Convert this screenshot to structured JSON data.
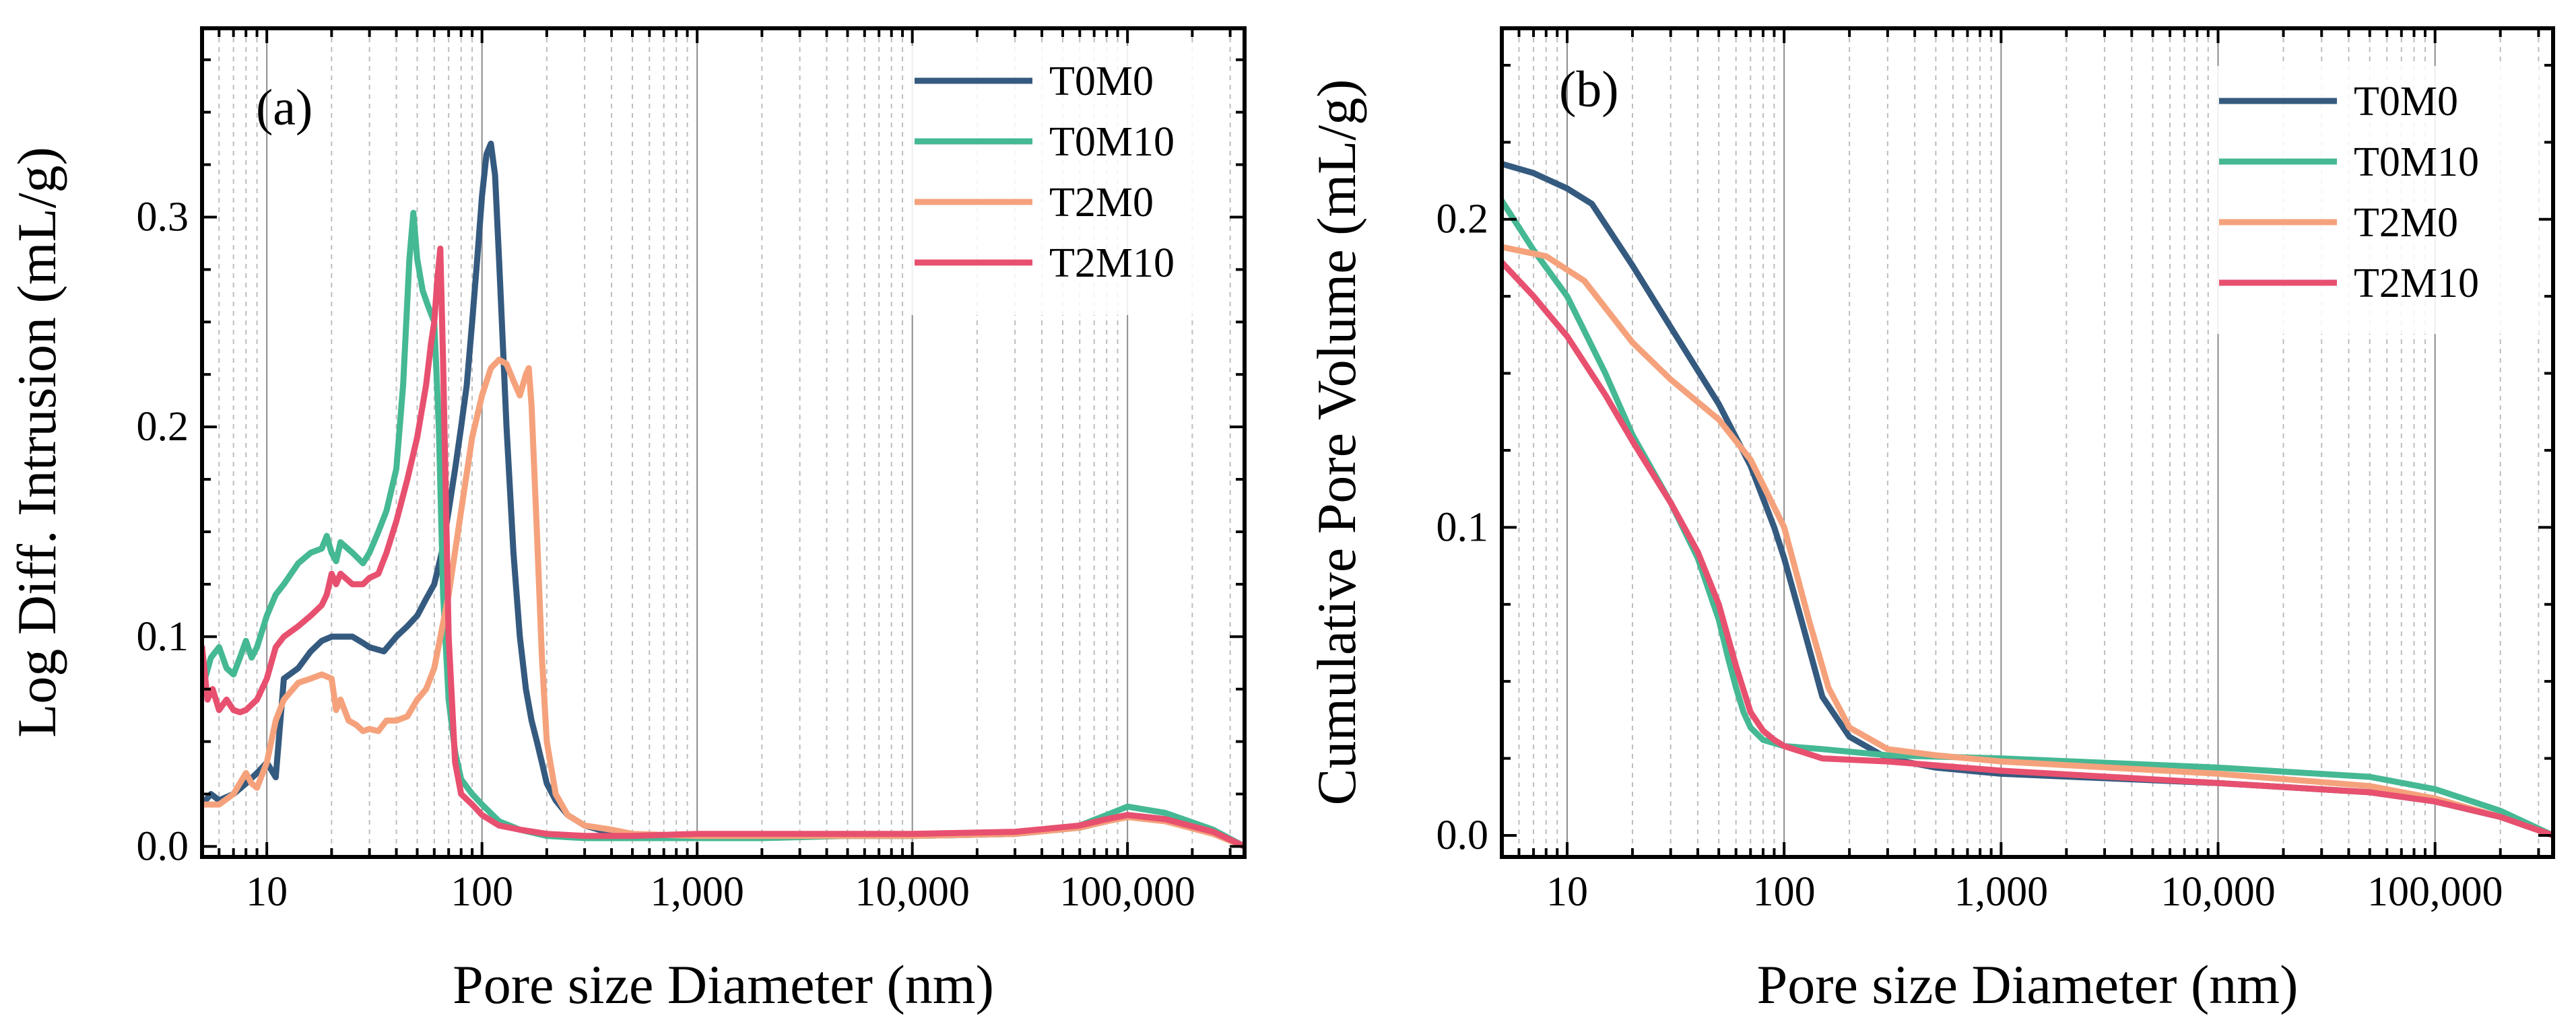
{
  "chart_data": [
    {
      "type": "line",
      "panel_label": "(a)",
      "xlabel": "Pore size Diameter (nm)",
      "ylabel": "Log Diff. Intrusion (mL/g)",
      "xscale": "log",
      "xlim": [
        5,
        350000
      ],
      "ylim": [
        -0.005,
        0.39
      ],
      "xticks": [
        10,
        100,
        1000,
        10000,
        100000
      ],
      "xtick_labels": [
        "10",
        "100",
        "1,000",
        "10,000",
        "100,000"
      ],
      "yticks": [
        0.0,
        0.1,
        0.2,
        0.3
      ],
      "ytick_labels": [
        "0.0",
        "0.1",
        "0.2",
        "0.3"
      ],
      "grid": "vertical, log minor",
      "legend_position": "top-right",
      "series": [
        {
          "name": "T0M0",
          "color": "#355a7f",
          "x": [
            5,
            5.5,
            6,
            7,
            8,
            9,
            10,
            11,
            12,
            14,
            16,
            18,
            20,
            22,
            25,
            28,
            30,
            35,
            40,
            45,
            50,
            55,
            60,
            65,
            70,
            75,
            80,
            85,
            90,
            95,
            100,
            105,
            110,
            115,
            120,
            125,
            130,
            140,
            150,
            160,
            170,
            180,
            190,
            200,
            220,
            250,
            300,
            350,
            400,
            500,
            700,
            1000,
            2000,
            5000,
            10000,
            30000,
            60000,
            80000,
            100000,
            150000,
            250000,
            350000
          ],
          "y": [
            0.02,
            0.025,
            0.022,
            0.025,
            0.03,
            0.035,
            0.04,
            0.033,
            0.08,
            0.085,
            0.093,
            0.098,
            0.1,
            0.1,
            0.1,
            0.097,
            0.095,
            0.093,
            0.1,
            0.105,
            0.11,
            0.118,
            0.125,
            0.14,
            0.16,
            0.18,
            0.2,
            0.22,
            0.25,
            0.28,
            0.31,
            0.33,
            0.335,
            0.32,
            0.28,
            0.24,
            0.2,
            0.14,
            0.1,
            0.075,
            0.06,
            0.05,
            0.04,
            0.03,
            0.022,
            0.015,
            0.01,
            0.008,
            0.006,
            0.005,
            0.004,
            0.004,
            0.005,
            0.005,
            0.005,
            0.006,
            0.009,
            0.012,
            0.015,
            0.013,
            0.007,
            0.0
          ]
        },
        {
          "name": "T0M10",
          "color": "#45b894",
          "x": [
            5,
            5.5,
            6,
            6.5,
            7,
            7.5,
            8,
            8.5,
            9,
            10,
            11,
            12,
            14,
            16,
            18,
            19,
            20,
            21,
            22,
            25,
            28,
            30,
            33,
            36,
            40,
            43,
            46,
            48,
            50,
            53,
            56,
            60,
            63,
            66,
            70,
            75,
            80,
            90,
            100,
            120,
            150,
            200,
            300,
            500,
            1000,
            2000,
            5000,
            10000,
            30000,
            60000,
            80000,
            100000,
            150000,
            250000,
            350000
          ],
          "y": [
            0.075,
            0.09,
            0.095,
            0.085,
            0.082,
            0.09,
            0.098,
            0.09,
            0.095,
            0.11,
            0.12,
            0.125,
            0.135,
            0.14,
            0.142,
            0.148,
            0.14,
            0.136,
            0.145,
            0.14,
            0.135,
            0.14,
            0.15,
            0.16,
            0.18,
            0.22,
            0.28,
            0.302,
            0.28,
            0.265,
            0.258,
            0.25,
            0.2,
            0.12,
            0.07,
            0.045,
            0.032,
            0.025,
            0.02,
            0.012,
            0.008,
            0.005,
            0.004,
            0.004,
            0.004,
            0.004,
            0.005,
            0.005,
            0.006,
            0.01,
            0.015,
            0.019,
            0.016,
            0.008,
            0.0
          ]
        },
        {
          "name": "T2M0",
          "color": "#f5a27c",
          "x": [
            5,
            6,
            7,
            8,
            8.5,
            9,
            10,
            11,
            12,
            14,
            16,
            18,
            20,
            21,
            22,
            24,
            26,
            28,
            30,
            33,
            36,
            40,
            45,
            50,
            55,
            60,
            70,
            80,
            90,
            100,
            110,
            120,
            130,
            140,
            150,
            160,
            165,
            170,
            180,
            190,
            200,
            220,
            250,
            300,
            400,
            500,
            1000,
            2000,
            5000,
            10000,
            30000,
            60000,
            80000,
            100000,
            150000,
            250000,
            350000
          ],
          "y": [
            0.02,
            0.02,
            0.025,
            0.035,
            0.03,
            0.028,
            0.04,
            0.06,
            0.07,
            0.078,
            0.08,
            0.082,
            0.08,
            0.065,
            0.07,
            0.06,
            0.058,
            0.055,
            0.056,
            0.055,
            0.06,
            0.06,
            0.062,
            0.07,
            0.075,
            0.085,
            0.12,
            0.16,
            0.195,
            0.215,
            0.228,
            0.232,
            0.23,
            0.222,
            0.215,
            0.225,
            0.228,
            0.21,
            0.15,
            0.09,
            0.05,
            0.025,
            0.015,
            0.01,
            0.008,
            0.006,
            0.005,
            0.005,
            0.005,
            0.005,
            0.006,
            0.009,
            0.012,
            0.014,
            0.012,
            0.006,
            0.0
          ]
        },
        {
          "name": "T2M10",
          "color": "#e8506f",
          "x": [
            5,
            5.3,
            5.6,
            6,
            6.5,
            7,
            7.5,
            8,
            9,
            10,
            11,
            12,
            14,
            16,
            18,
            19,
            20,
            21,
            22,
            25,
            28,
            30,
            33,
            36,
            40,
            45,
            50,
            55,
            58,
            60,
            62,
            64,
            66,
            70,
            75,
            80,
            90,
            100,
            120,
            150,
            200,
            300,
            500,
            1000,
            2000,
            5000,
            10000,
            30000,
            60000,
            80000,
            100000,
            150000,
            250000,
            350000
          ],
          "y": [
            0.095,
            0.07,
            0.075,
            0.065,
            0.07,
            0.065,
            0.064,
            0.065,
            0.07,
            0.08,
            0.095,
            0.1,
            0.105,
            0.11,
            0.115,
            0.12,
            0.13,
            0.125,
            0.13,
            0.125,
            0.125,
            0.128,
            0.13,
            0.14,
            0.155,
            0.175,
            0.195,
            0.22,
            0.24,
            0.25,
            0.27,
            0.285,
            0.23,
            0.1,
            0.04,
            0.025,
            0.02,
            0.015,
            0.01,
            0.008,
            0.006,
            0.005,
            0.005,
            0.006,
            0.006,
            0.006,
            0.006,
            0.007,
            0.01,
            0.013,
            0.015,
            0.013,
            0.007,
            0.0
          ]
        }
      ]
    },
    {
      "type": "line",
      "panel_label": "(b)",
      "xlabel": "Pore size Diameter (nm)",
      "ylabel": "Cumulative Pore Volume (mL/g)",
      "xscale": "log",
      "xlim": [
        5,
        350000
      ],
      "ylim": [
        -0.007,
        0.262
      ],
      "xticks": [
        10,
        100,
        1000,
        10000,
        100000
      ],
      "xtick_labels": [
        "10",
        "100",
        "1,000",
        "10,000",
        "100,000"
      ],
      "yticks": [
        0.0,
        0.1,
        0.2
      ],
      "ytick_labels": [
        "0.0",
        "0.1",
        "0.2"
      ],
      "grid": "vertical, log minor",
      "legend_position": "top-right",
      "series": [
        {
          "name": "T0M0",
          "color": "#355a7f",
          "x": [
            5,
            7,
            10,
            13,
            20,
            30,
            50,
            70,
            90,
            100,
            120,
            150,
            200,
            300,
            500,
            1000,
            10000,
            50000,
            100000,
            200000,
            350000
          ],
          "y": [
            0.218,
            0.215,
            0.21,
            0.205,
            0.185,
            0.165,
            0.14,
            0.12,
            0.1,
            0.09,
            0.07,
            0.045,
            0.032,
            0.025,
            0.022,
            0.02,
            0.017,
            0.014,
            0.011,
            0.006,
            0.0
          ]
        },
        {
          "name": "T0M10",
          "color": "#45b894",
          "x": [
            5,
            7,
            10,
            15,
            20,
            30,
            40,
            50,
            55,
            60,
            65,
            70,
            80,
            100,
            150,
            300,
            1000,
            10000,
            50000,
            100000,
            200000,
            350000
          ],
          "y": [
            0.206,
            0.19,
            0.175,
            0.15,
            0.13,
            0.108,
            0.09,
            0.07,
            0.058,
            0.048,
            0.04,
            0.035,
            0.031,
            0.029,
            0.028,
            0.026,
            0.025,
            0.022,
            0.019,
            0.015,
            0.008,
            0.0
          ]
        },
        {
          "name": "T2M0",
          "color": "#f5a27c",
          "x": [
            5,
            8,
            12,
            20,
            30,
            50,
            70,
            100,
            130,
            160,
            200,
            300,
            500,
            1000,
            10000,
            50000,
            100000,
            200000,
            350000
          ],
          "y": [
            0.191,
            0.188,
            0.18,
            0.16,
            0.148,
            0.135,
            0.122,
            0.1,
            0.07,
            0.048,
            0.035,
            0.028,
            0.026,
            0.024,
            0.02,
            0.016,
            0.012,
            0.006,
            0.0
          ]
        },
        {
          "name": "T2M10",
          "color": "#e8506f",
          "x": [
            5,
            7,
            10,
            15,
            20,
            30,
            40,
            50,
            60,
            70,
            80,
            90,
            100,
            150,
            300,
            1000,
            10000,
            50000,
            100000,
            200000,
            350000
          ],
          "y": [
            0.186,
            0.175,
            0.162,
            0.143,
            0.128,
            0.108,
            0.092,
            0.075,
            0.055,
            0.04,
            0.034,
            0.031,
            0.029,
            0.025,
            0.024,
            0.021,
            0.017,
            0.014,
            0.011,
            0.006,
            0.0
          ]
        }
      ]
    }
  ]
}
